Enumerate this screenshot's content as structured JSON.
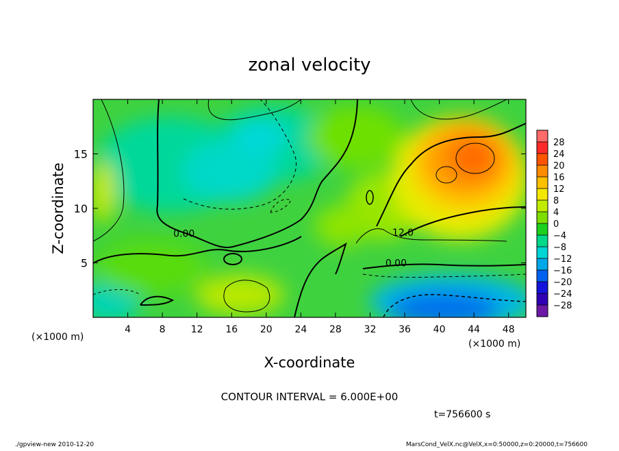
{
  "chart_data": {
    "type": "heatmap",
    "title": "zonal velocity",
    "xlabel": "X-coordinate",
    "ylabel": "Z-coordinate",
    "x_unit_left": "(×1000 m)",
    "x_unit_right": "(×1000 m)",
    "xlim": [
      0,
      50
    ],
    "ylim": [
      0,
      20
    ],
    "x_ticks": [
      4,
      8,
      12,
      16,
      20,
      24,
      28,
      32,
      36,
      40,
      44,
      48
    ],
    "y_ticks": [
      5,
      10,
      15
    ],
    "colorbar": {
      "tick_values": [
        28,
        24,
        20,
        16,
        12,
        8,
        4,
        0,
        -4,
        -8,
        -12,
        -16,
        -20,
        -24,
        -28
      ],
      "tick_labels": [
        "28",
        "24",
        "20",
        "16",
        "12",
        "8",
        "4",
        "0",
        "−4",
        "−8",
        "−12",
        "−16",
        "−20",
        "−24",
        "−28"
      ],
      "colors": [
        "#ff6a6a",
        "#ff2a2a",
        "#ff5500",
        "#ff8c00",
        "#ffc000",
        "#f5e800",
        "#c0ec00",
        "#7ede00",
        "#1ed01e",
        "#00d88a",
        "#00d4d4",
        "#00a8e8",
        "#0060f0",
        "#1414dc",
        "#3000b4",
        "#6c1aa6"
      ]
    },
    "contour_labels": [
      {
        "text": "0.00",
        "x": 10.5,
        "z": 7.4
      },
      {
        "text": "12.0",
        "x": 35.8,
        "z": 7.5
      },
      {
        "text": "0.00",
        "x": 35.0,
        "z": 4.7
      }
    ],
    "contour_interval_text": "CONTOUR INTERVAL = 6.000E+00",
    "time_text": "t=756600 s",
    "footer_left": "./gpview-new   2010-12-20",
    "footer_right": "MarsCond_VelX.nc@VelX,x=0:50000,z=0:20000,t=756600"
  }
}
